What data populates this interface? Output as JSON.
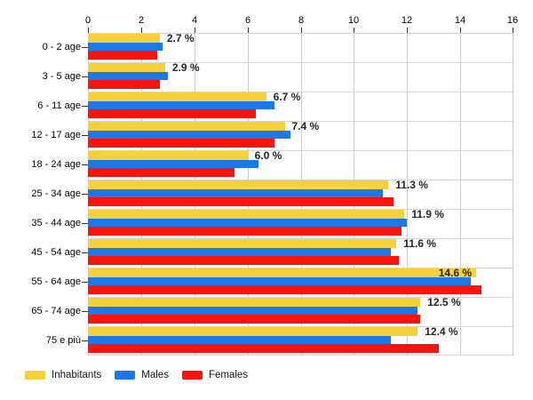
{
  "chart_data": {
    "type": "bar",
    "orientation": "horizontal",
    "title": "",
    "xlabel": "",
    "ylabel": "",
    "xlim": [
      0,
      16
    ],
    "x_ticks": [
      "0",
      "2",
      "4",
      "6",
      "8",
      "10",
      "12",
      "14",
      "16"
    ],
    "x_tick_values": [
      0,
      2,
      4,
      6,
      8,
      10,
      12,
      14,
      16
    ],
    "grid": true,
    "legend_position": "bottom",
    "categories": [
      "0 - 2 age",
      "3 - 5 age",
      "6 - 11 age",
      "12 - 17 age",
      "18 - 24 age",
      "25 - 34 age",
      "35 - 44 age",
      "45 - 54 age",
      "55 - 64 age",
      "65 - 74 age",
      "75 e più"
    ],
    "series": [
      {
        "name": "Inhabitants",
        "color": "#F6D13B",
        "values": [
          2.7,
          2.9,
          6.7,
          7.4,
          6.0,
          11.3,
          11.9,
          11.6,
          14.6,
          12.5,
          12.4
        ]
      },
      {
        "name": "Males",
        "color": "#1C78E8",
        "values": [
          2.8,
          3.0,
          7.0,
          7.6,
          6.4,
          11.1,
          12.0,
          11.4,
          14.4,
          12.4,
          11.4
        ]
      },
      {
        "name": "Females",
        "color": "#FC130D",
        "values": [
          2.6,
          2.7,
          6.3,
          7.0,
          5.5,
          11.5,
          11.8,
          11.7,
          14.8,
          12.5,
          13.2
        ]
      }
    ],
    "data_labels": [
      "2.7 %",
      "2.9 %",
      "6.7 %",
      "7.4 %",
      "6.0 %",
      "11.3 %",
      "11.9 %",
      "11.6 %",
      "14.6 %",
      "12.5 %",
      "12.4 %"
    ],
    "data_labels_on_series": "Inhabitants",
    "colors": {
      "gridline_vertical": "#CCCCCC",
      "gridline_horizontal": "#D4D4D4",
      "axis_text": "#000000",
      "data_label_text": "#262626",
      "tick_mark": "#333333",
      "background": "#FFFFFF"
    }
  }
}
